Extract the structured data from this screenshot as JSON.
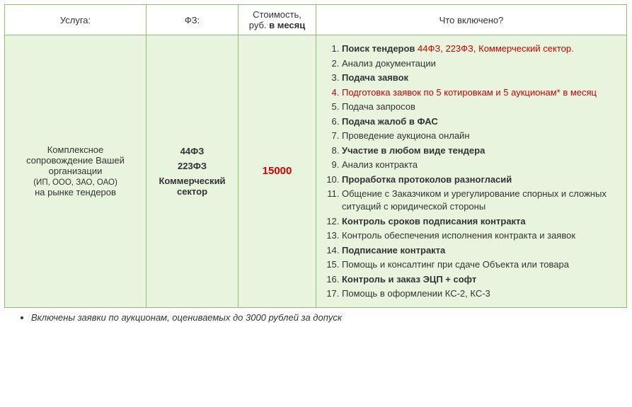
{
  "colors": {
    "border": "#8fbf6e",
    "body_bg": "#e8f4de",
    "red": "#d40000",
    "text": "#333333"
  },
  "font": {
    "family": "Verdana",
    "size_pt": 10
  },
  "headers": {
    "service": "Услуга:",
    "fz": "ФЗ:",
    "price_line1": "Стоимость,",
    "price_line2": "руб.",
    "price_line3": "в месяц",
    "included": "Что включено?"
  },
  "row": {
    "service_line1": "Комплексное",
    "service_line2": "сопровождение Вашей",
    "service_line3": "организации",
    "service_line4": "(ИП, ООО, ЗАО, ОАО)",
    "service_line5": "на рынке тендеров",
    "fz": {
      "l1": "44ФЗ",
      "l2": "223ФЗ",
      "l3": "Коммерческий",
      "l4": "сектор"
    },
    "price": "15000"
  },
  "items": [
    {
      "bold": true,
      "red_tail": true,
      "head": "Поиск тендеров",
      "tail": " 44ФЗ, 223ФЗ, Коммерческий сектор."
    },
    {
      "bold": false,
      "text": "Анализ документации"
    },
    {
      "bold": true,
      "text": "Подача заявок"
    },
    {
      "bold": false,
      "all_red": true,
      "text": "Подготовка заявок по 5 котировкам и 5 аукционам* в месяц"
    },
    {
      "bold": false,
      "text": "Подача запросов"
    },
    {
      "bold": true,
      "text": "Подача жалоб в ФАС"
    },
    {
      "bold": false,
      "text": "Проведение аукциона онлайн"
    },
    {
      "bold": true,
      "text": "Участие в любом виде тендера"
    },
    {
      "bold": false,
      "text": "Анализ контракта"
    },
    {
      "bold": true,
      "text": "Проработка протоколов разногласий"
    },
    {
      "bold": false,
      "text": "Общение с Заказчиком и урегулирование спорных и сложных ситуаций с юридической стороны"
    },
    {
      "bold": true,
      "text": "Контроль сроков подписания контракта"
    },
    {
      "bold": false,
      "text": "Контроль обеспечения исполнения контракта и заявок"
    },
    {
      "bold": true,
      "text": "Подписание контракта"
    },
    {
      "bold": false,
      "text": "Помощь и консалтинг при сдаче Объекта или товара"
    },
    {
      "bold": true,
      "text": "Контроль и заказ ЭЦП + софт"
    },
    {
      "bold": false,
      "text": "Помощь в оформлении КС-2, КС-3"
    }
  ],
  "footnote": "Включены заявки по аукционам, оцениваемых до 3000 рублей за допуск"
}
